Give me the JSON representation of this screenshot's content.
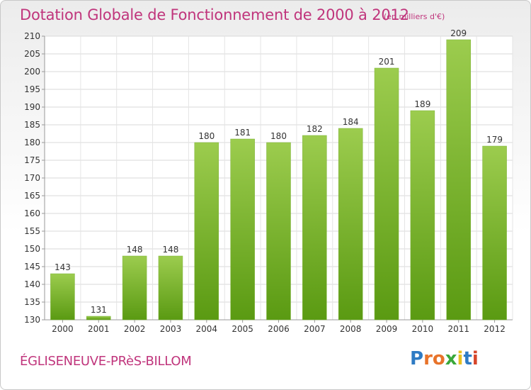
{
  "chart_data": {
    "type": "bar",
    "title": "Dotation Globale de Fonctionnement de 2000 à 2012",
    "subtitle": "(en milliers d'€)",
    "categories": [
      "2000",
      "2001",
      "2002",
      "2003",
      "2004",
      "2005",
      "2006",
      "2007",
      "2008",
      "2009",
      "2010",
      "2011",
      "2012"
    ],
    "values": [
      143,
      131,
      148,
      148,
      180,
      181,
      180,
      182,
      184,
      201,
      189,
      209,
      179
    ],
    "ylim": [
      130,
      210
    ],
    "yticks": [
      130,
      135,
      140,
      145,
      150,
      155,
      160,
      165,
      170,
      175,
      180,
      185,
      190,
      195,
      200,
      205,
      210
    ],
    "grid": true,
    "bar_color_top": "#9ccc4e",
    "bar_color_bottom": "#5a9a12"
  },
  "commune": "ÉGLISENEUVE-PRèS-BILLOM",
  "logo": {
    "letters": [
      "P",
      "r",
      "o",
      "x",
      "i",
      "t",
      "i"
    ],
    "colors": [
      "#2e7bc4",
      "#e8732a",
      "#e8732a",
      "#3aa83a",
      "#e8c020",
      "#2e7bc4",
      "#d6452a"
    ]
  }
}
